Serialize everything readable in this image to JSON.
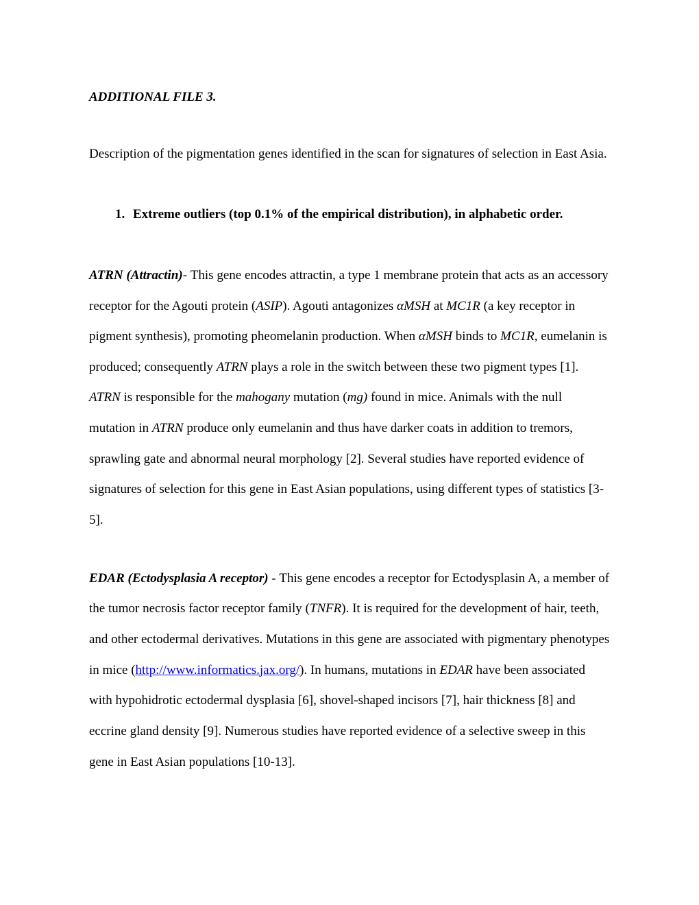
{
  "title": "ADDITIONAL FILE 3.",
  "intro": "Description of the pigmentation genes identified in the scan for signatures of selection in East Asia.",
  "section": {
    "num": "1.",
    "heading": "Extreme outliers (top 0.1% of the empirical distribution), in alphabetic order."
  },
  "atrn": {
    "name": "ATRN (Attractin)",
    "sep": "- ",
    "t1": "This gene encodes attractin, a type 1 membrane protein that acts as an accessory receptor for the Agouti protein (",
    "asip": "ASIP",
    "t2": "). Agouti antagonizes ",
    "amsh1": "αMSH",
    "t3": " at ",
    "mc1r1": "MC1R",
    "t4": " (a key receptor in pigment synthesis), promoting pheomelanin production. When ",
    "amsh2": "αMSH",
    "t5": " binds to ",
    "mc1r2": "MC1R",
    "t6": ", eumelanin is produced; consequently ",
    "atrn1": "ATRN",
    "t7": " plays a role in the switch between these two pigment types [1]. ",
    "atrn2": "ATRN",
    "t8": " is responsible for the ",
    "mahogany": "mahogany",
    "t9": " mutation (",
    "mg": "mg)",
    "t10": " found in mice. Animals with the null mutation in ",
    "atrn3": "ATRN",
    "t11": " produce only eumelanin and thus have darker coats in addition to tremors, sprawling gate and abnormal neural morphology [2]. Several studies have reported evidence of signatures of selection for this gene in East Asian populations, using different types of statistics [3-5]."
  },
  "edar": {
    "name": "EDAR (Ectodysplasia A receptor)",
    "sep": " - ",
    "t1": "This gene encodes a receptor for Ectodysplasin A, a member of the tumor necrosis factor receptor family (",
    "tnfr": "TNFR",
    "t2": "). It is required for the development of hair, teeth, and other ectodermal derivatives. Mutations in this gene are associated with pigmentary phenotypes in mice (",
    "link": "http://www.informatics.jax.org/",
    "t3": "). In humans, mutations in ",
    "edar1": "EDAR",
    "t4": " have been associated with hypohidrotic ectodermal dysplasia [6], shovel-shaped incisors [7], hair thickness [8] and eccrine gland density [9]. Numerous studies have reported evidence of a selective sweep in this gene in East Asian populations [10-13]."
  }
}
